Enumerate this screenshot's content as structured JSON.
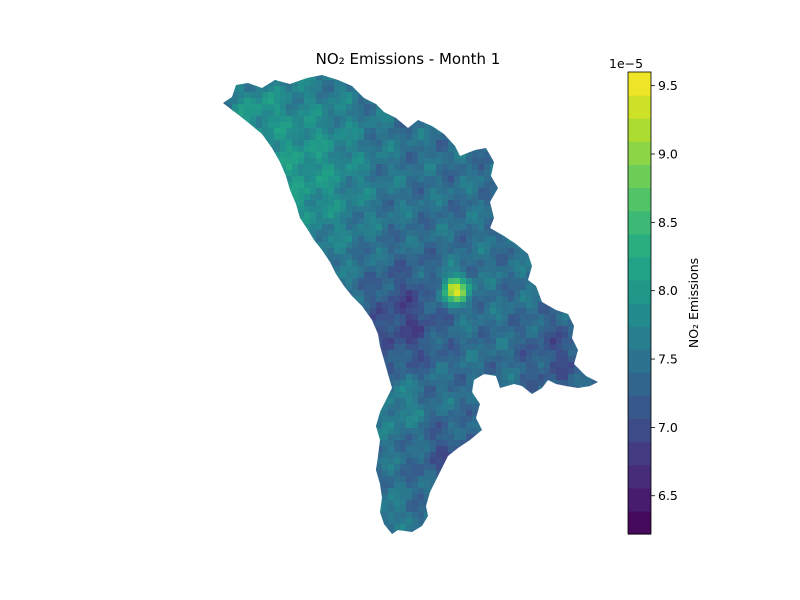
{
  "title": "NO₂ Emissions - Month 1",
  "colorbar": {
    "label": "NO₂ Emissions",
    "offset_label": "1e−5",
    "min": 6.22,
    "max": 9.6,
    "ticks": [
      "6.5",
      "7.0",
      "7.5",
      "8.0",
      "8.5",
      "9.0",
      "9.5"
    ],
    "tick_values": [
      6.5,
      7.0,
      7.5,
      8.0,
      8.5,
      9.0,
      9.5
    ],
    "colormap": "viridis",
    "levels": 20,
    "colors": [
      "#440154",
      "#482475",
      "#414487",
      "#355f8d",
      "#2a788e",
      "#21918c",
      "#22a884",
      "#44bf70",
      "#7ad151",
      "#bddf26",
      "#fde725"
    ]
  },
  "map": {
    "region": "Moldova",
    "hotspot_value": 9.5,
    "typical_range": [
      6.5,
      8.8
    ]
  }
}
